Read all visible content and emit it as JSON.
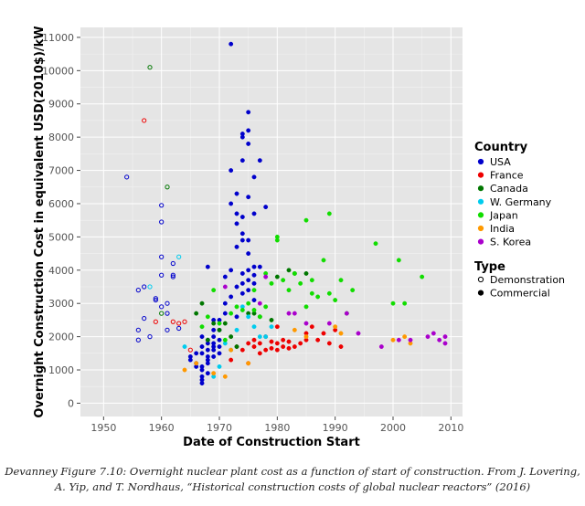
{
  "chart_data": {
    "type": "scatter",
    "title": "",
    "xlabel": "Date of Construction Start",
    "ylabel": "Overnight Construction Cost in equivalent USD(2010$)/kW",
    "xlim": [
      1946,
      2012
    ],
    "ylim": [
      -400,
      11300
    ],
    "x_ticks": [
      1950,
      1960,
      1970,
      1980,
      1990,
      2000,
      2010
    ],
    "y_ticks": [
      0,
      1000,
      2000,
      3000,
      4000,
      5000,
      6000,
      7000,
      8000,
      9000,
      10000,
      11000
    ],
    "grid": true,
    "legend": {
      "position": "right",
      "country_title": "Country",
      "type_title": "Type",
      "types": [
        {
          "name": "Demonstration",
          "marker": "open"
        },
        {
          "name": "Commercial",
          "marker": "filled"
        }
      ]
    },
    "series": [
      {
        "name": "USA",
        "color": "#0000cc",
        "demonstration": [
          [
            1954,
            6800
          ],
          [
            1956,
            2200
          ],
          [
            1956,
            3400
          ],
          [
            1956,
            1900
          ],
          [
            1957,
            2550
          ],
          [
            1957,
            3500
          ],
          [
            1958,
            2000
          ],
          [
            1959,
            3100
          ],
          [
            1959,
            3150
          ],
          [
            1960,
            5950
          ],
          [
            1960,
            5450
          ],
          [
            1960,
            3850
          ],
          [
            1960,
            4400
          ],
          [
            1960,
            2900
          ],
          [
            1961,
            2700
          ],
          [
            1961,
            2200
          ],
          [
            1961,
            3000
          ],
          [
            1962,
            4200
          ],
          [
            1962,
            3800
          ],
          [
            1962,
            3850
          ],
          [
            1963,
            2250
          ]
        ],
        "commercial": [
          [
            1965,
            1400
          ],
          [
            1965,
            1300
          ],
          [
            1966,
            1100
          ],
          [
            1966,
            1500
          ],
          [
            1966,
            1200
          ],
          [
            1967,
            600
          ],
          [
            1967,
            700
          ],
          [
            1967,
            800
          ],
          [
            1967,
            1000
          ],
          [
            1967,
            1100
          ],
          [
            1967,
            1500
          ],
          [
            1967,
            1700
          ],
          [
            1967,
            2000
          ],
          [
            1968,
            900
          ],
          [
            1968,
            1200
          ],
          [
            1968,
            1300
          ],
          [
            1968,
            1400
          ],
          [
            1968,
            1600
          ],
          [
            1968,
            1800
          ],
          [
            1968,
            1900
          ],
          [
            1968,
            4100
          ],
          [
            1969,
            1400
          ],
          [
            1969,
            1600
          ],
          [
            1969,
            1700
          ],
          [
            1969,
            1800
          ],
          [
            1969,
            2000
          ],
          [
            1969,
            2200
          ],
          [
            1969,
            2500
          ],
          [
            1970,
            1500
          ],
          [
            1970,
            1700
          ],
          [
            1970,
            1900
          ],
          [
            1970,
            2200
          ],
          [
            1970,
            2500
          ],
          [
            1971,
            2700
          ],
          [
            1971,
            3000
          ],
          [
            1971,
            3800
          ],
          [
            1972,
            3200
          ],
          [
            1972,
            4000
          ],
          [
            1972,
            6000
          ],
          [
            1972,
            7000
          ],
          [
            1972,
            10800
          ],
          [
            1973,
            3500
          ],
          [
            1973,
            4700
          ],
          [
            1973,
            5400
          ],
          [
            1973,
            5700
          ],
          [
            1973,
            6300
          ],
          [
            1974,
            3300
          ],
          [
            1974,
            3600
          ],
          [
            1974,
            4900
          ],
          [
            1974,
            5100
          ],
          [
            1974,
            5600
          ],
          [
            1974,
            7300
          ],
          [
            1974,
            8000
          ],
          [
            1974,
            8100
          ],
          [
            1975,
            3400
          ],
          [
            1975,
            3700
          ],
          [
            1975,
            4000
          ],
          [
            1975,
            4500
          ],
          [
            1975,
            6200
          ],
          [
            1975,
            7800
          ],
          [
            1975,
            8200
          ],
          [
            1975,
            8750
          ],
          [
            1976,
            3100
          ],
          [
            1976,
            3600
          ],
          [
            1976,
            4100
          ],
          [
            1976,
            5700
          ],
          [
            1976,
            6800
          ],
          [
            1977,
            4100
          ],
          [
            1977,
            7300
          ],
          [
            1978,
            5900
          ],
          [
            1973,
            2600
          ],
          [
            1974,
            3900
          ],
          [
            1975,
            4900
          ],
          [
            1976,
            3850
          ]
        ]
      },
      {
        "name": "France",
        "color": "#ee0000",
        "demonstration": [
          [
            1957,
            8500
          ],
          [
            1959,
            2450
          ],
          [
            1962,
            2450
          ],
          [
            1963,
            2400
          ],
          [
            1964,
            2450
          ],
          [
            1965,
            1600
          ]
        ],
        "commercial": [
          [
            1972,
            1300
          ],
          [
            1973,
            1700
          ],
          [
            1974,
            1600
          ],
          [
            1975,
            1200
          ],
          [
            1975,
            1800
          ],
          [
            1976,
            1700
          ],
          [
            1976,
            1900
          ],
          [
            1977,
            1500
          ],
          [
            1977,
            1800
          ],
          [
            1978,
            1600
          ],
          [
            1978,
            2000
          ],
          [
            1979,
            1650
          ],
          [
            1979,
            1850
          ],
          [
            1980,
            1600
          ],
          [
            1980,
            1800
          ],
          [
            1980,
            2300
          ],
          [
            1981,
            1700
          ],
          [
            1981,
            1900
          ],
          [
            1982,
            1650
          ],
          [
            1982,
            1850
          ],
          [
            1983,
            1700
          ],
          [
            1984,
            1800
          ],
          [
            1985,
            1900
          ],
          [
            1985,
            2100
          ],
          [
            1986,
            2300
          ],
          [
            1987,
            1900
          ],
          [
            1988,
            2100
          ],
          [
            1989,
            1800
          ],
          [
            1990,
            2200
          ],
          [
            1991,
            1700
          ]
        ]
      },
      {
        "name": "Canada",
        "color": "#007700",
        "demonstration": [
          [
            1958,
            10100
          ],
          [
            1960,
            2700
          ],
          [
            1961,
            6500
          ]
        ],
        "commercial": [
          [
            1966,
            2700
          ],
          [
            1967,
            3000
          ],
          [
            1968,
            1900
          ],
          [
            1969,
            2400
          ],
          [
            1970,
            2200
          ],
          [
            1971,
            2400
          ],
          [
            1972,
            2000
          ],
          [
            1973,
            1700
          ],
          [
            1975,
            2700
          ],
          [
            1976,
            2700
          ],
          [
            1977,
            2600
          ],
          [
            1979,
            2500
          ],
          [
            1980,
            3800
          ],
          [
            1982,
            4000
          ],
          [
            1983,
            3900
          ],
          [
            1985,
            3900
          ]
        ]
      },
      {
        "name": "W. Germany",
        "color": "#00ccee",
        "demonstration": [
          [
            1958,
            3500
          ],
          [
            1963,
            4400
          ]
        ],
        "commercial": [
          [
            1964,
            1700
          ],
          [
            1969,
            800
          ],
          [
            1970,
            1100
          ],
          [
            1971,
            1800
          ],
          [
            1972,
            1600
          ],
          [
            1973,
            2200
          ],
          [
            1974,
            2900
          ],
          [
            1975,
            2600
          ],
          [
            1976,
            2300
          ],
          [
            1977,
            2000
          ],
          [
            1978,
            2000
          ],
          [
            1979,
            2300
          ]
        ]
      },
      {
        "name": "Japan",
        "color": "#11dd00",
        "demonstration": [],
        "commercial": [
          [
            1967,
            2300
          ],
          [
            1968,
            2600
          ],
          [
            1969,
            3400
          ],
          [
            1970,
            2400
          ],
          [
            1971,
            1900
          ],
          [
            1972,
            2700
          ],
          [
            1973,
            2900
          ],
          [
            1974,
            2800
          ],
          [
            1975,
            3000
          ],
          [
            1976,
            2800
          ],
          [
            1977,
            2600
          ],
          [
            1978,
            2900
          ],
          [
            1979,
            3600
          ],
          [
            1980,
            4900
          ],
          [
            1980,
            5000
          ],
          [
            1981,
            3700
          ],
          [
            1982,
            3400
          ],
          [
            1983,
            3900
          ],
          [
            1984,
            3600
          ],
          [
            1985,
            2900
          ],
          [
            1985,
            5500
          ],
          [
            1986,
            3300
          ],
          [
            1987,
            3200
          ],
          [
            1988,
            4300
          ],
          [
            1989,
            3300
          ],
          [
            1989,
            5700
          ],
          [
            1990,
            3100
          ],
          [
            1991,
            3700
          ],
          [
            1992,
            2700
          ],
          [
            1993,
            3400
          ],
          [
            1997,
            4800
          ],
          [
            2000,
            3000
          ],
          [
            2001,
            4300
          ],
          [
            2002,
            3000
          ],
          [
            2005,
            3800
          ],
          [
            1976,
            3400
          ],
          [
            1978,
            3900
          ],
          [
            1986,
            3700
          ]
        ]
      },
      {
        "name": "India",
        "color": "#ff9900",
        "demonstration": [],
        "commercial": [
          [
            1964,
            1000
          ],
          [
            1966,
            1200
          ],
          [
            1969,
            900
          ],
          [
            1971,
            800
          ],
          [
            1972,
            1600
          ],
          [
            1975,
            1200
          ],
          [
            1983,
            2200
          ],
          [
            1985,
            2000
          ],
          [
            1990,
            2300
          ],
          [
            1991,
            2100
          ],
          [
            2000,
            1900
          ],
          [
            2002,
            2000
          ],
          [
            2003,
            1800
          ]
        ]
      },
      {
        "name": "S. Korea",
        "color": "#aa00cc",
        "demonstration": [],
        "commercial": [
          [
            1971,
            3500
          ],
          [
            1977,
            3000
          ],
          [
            1978,
            3800
          ],
          [
            1982,
            2700
          ],
          [
            1983,
            2700
          ],
          [
            1985,
            2400
          ],
          [
            1989,
            2400
          ],
          [
            1992,
            2700
          ],
          [
            1994,
            2100
          ],
          [
            1998,
            1700
          ],
          [
            2001,
            1900
          ],
          [
            2003,
            1900
          ],
          [
            2006,
            2000
          ],
          [
            2007,
            2100
          ],
          [
            2008,
            1900
          ],
          [
            2009,
            2000
          ],
          [
            2009,
            1800
          ]
        ]
      }
    ]
  },
  "caption": {
    "line1": "Devanney Figure 7.10: Overnight nuclear plant cost as a function of start of construction. From J. Lovering,",
    "line2": "A. Yip, and T. Nordhaus, “Historical construction costs of global nuclear reactors” (2016)"
  }
}
